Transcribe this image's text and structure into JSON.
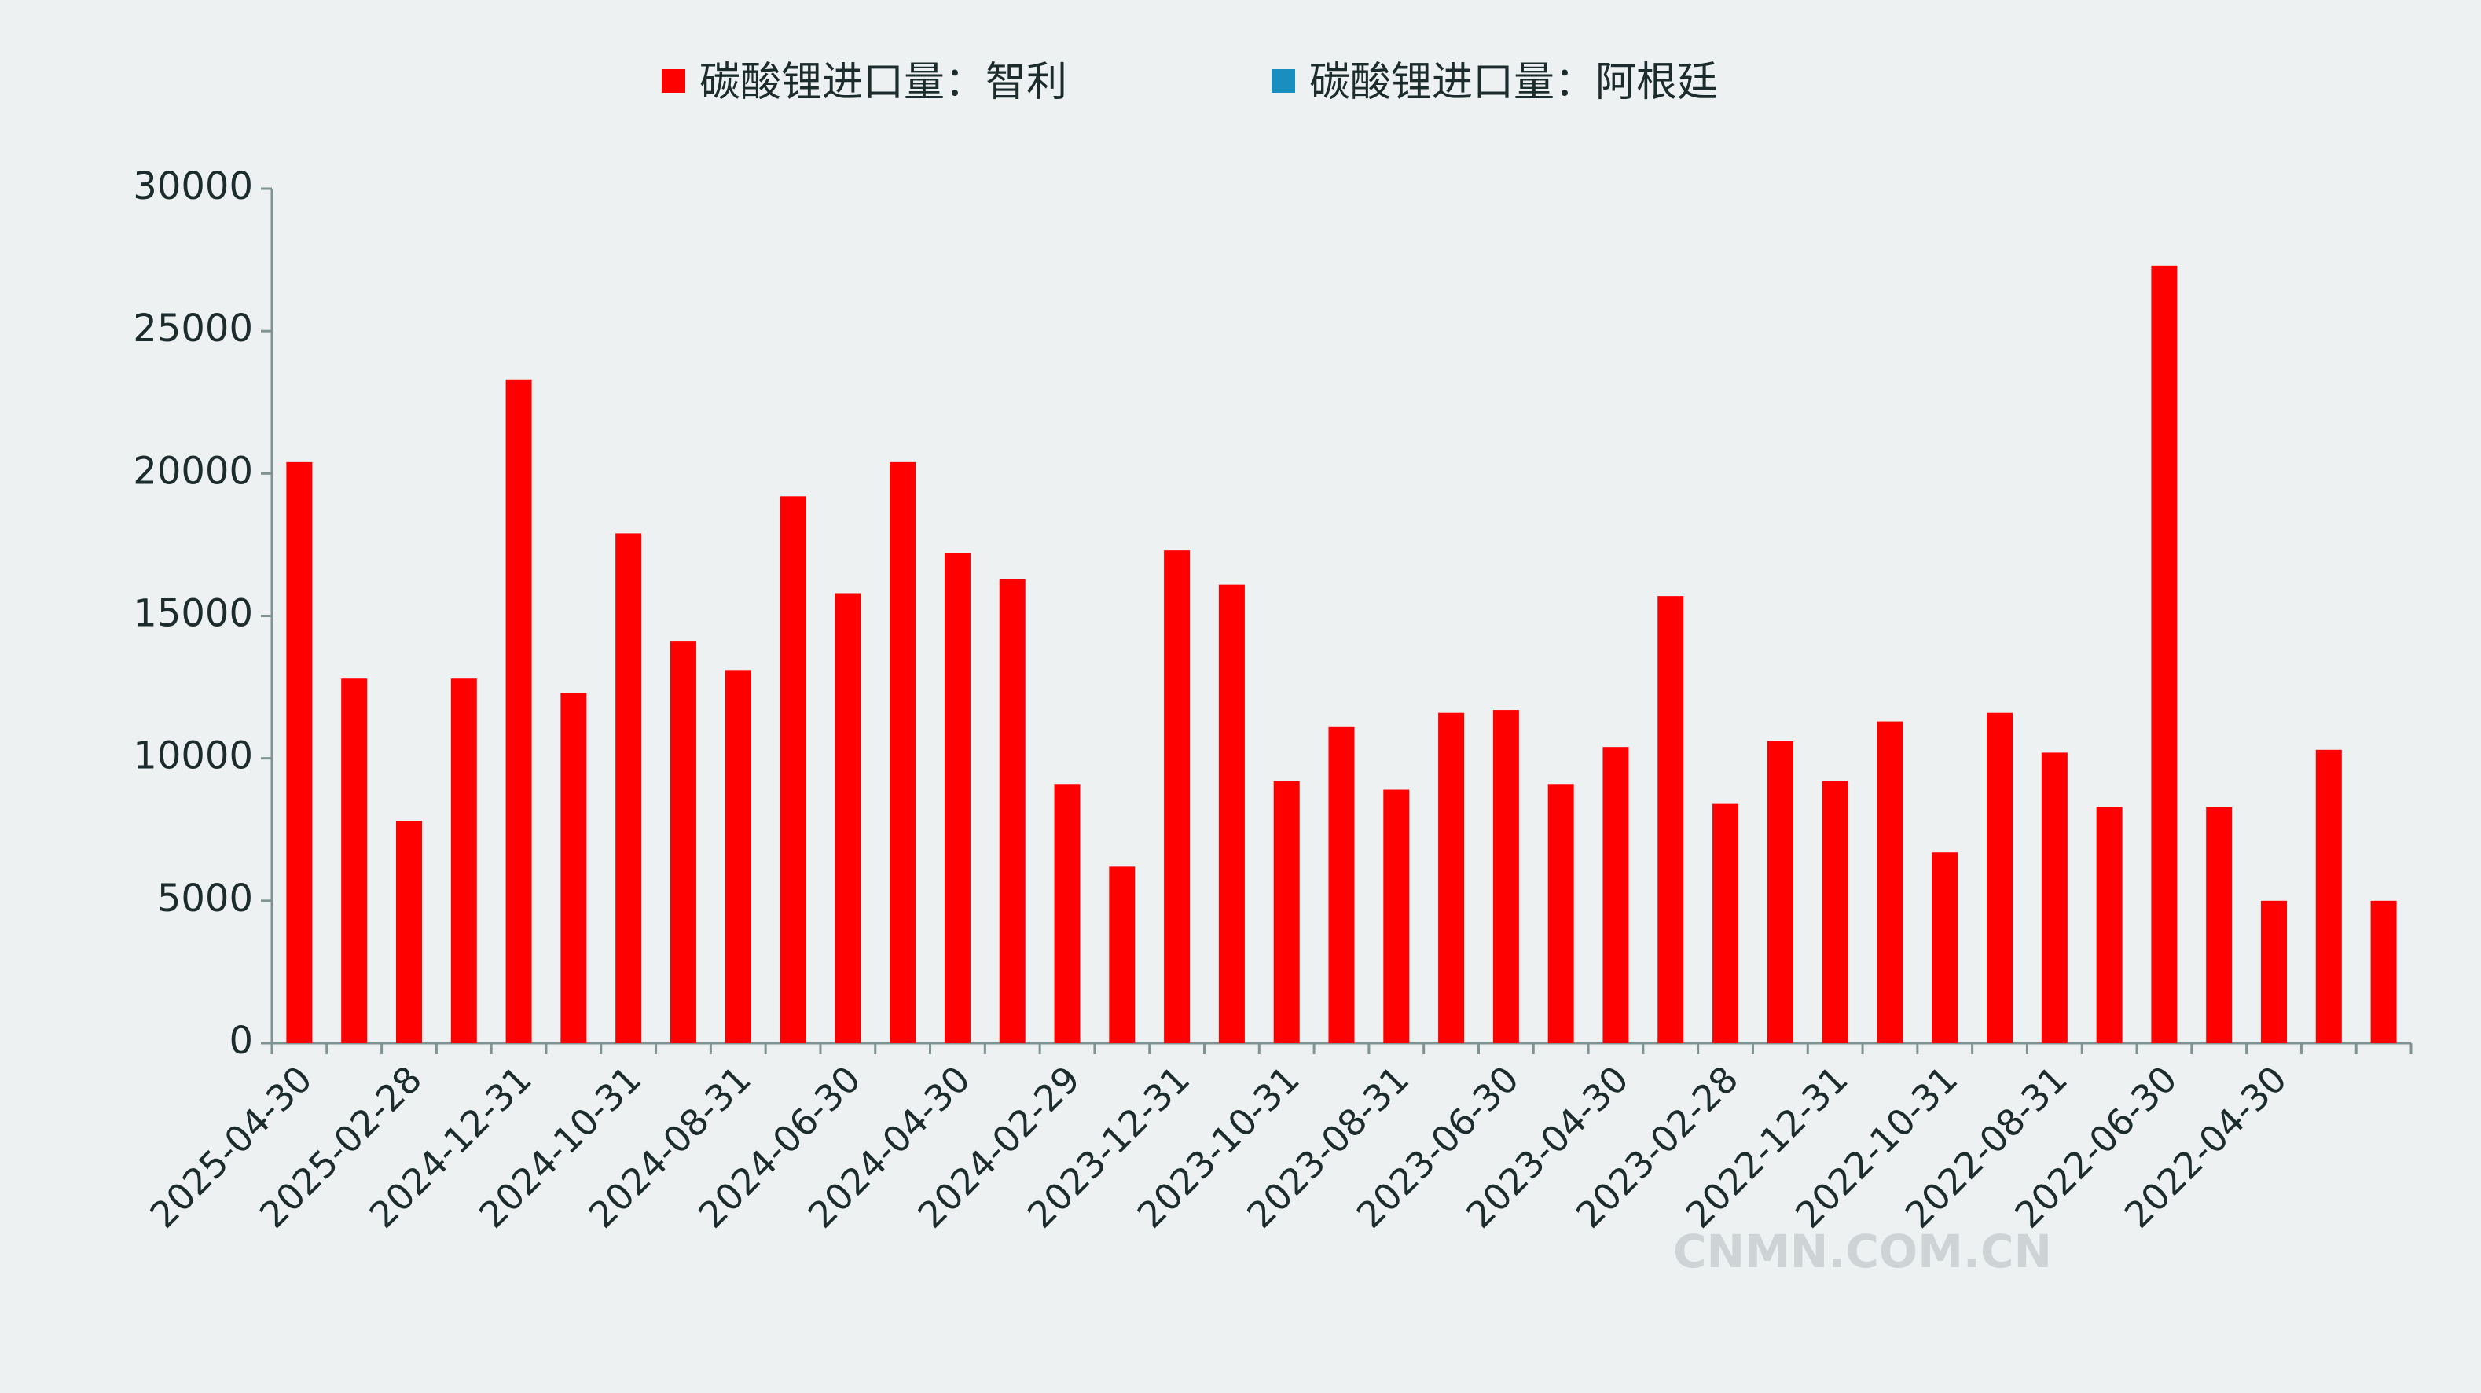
{
  "chart_data": {
    "type": "bar",
    "categories": [
      "2025-04-30",
      null,
      "2025-02-28",
      null,
      "2024-12-31",
      null,
      "2024-10-31",
      null,
      "2024-08-31",
      null,
      "2024-06-30",
      null,
      "2024-04-30",
      null,
      "2024-02-29",
      null,
      "2023-12-31",
      null,
      "2023-10-31",
      null,
      "2023-08-31",
      null,
      "2023-06-30",
      null,
      "2023-04-30",
      null,
      "2023-02-28",
      null,
      "2022-12-31",
      null,
      "2022-10-31",
      null,
      "2022-08-31",
      null,
      "2022-06-30",
      null,
      "2022-04-30",
      null,
      null
    ],
    "series": [
      {
        "name": "碳酸锂进口量：智利",
        "color": "#ff0000",
        "values": [
          20400,
          12800,
          7800,
          12800,
          23300,
          12300,
          17900,
          14100,
          13100,
          19200,
          15800,
          20400,
          17200,
          16300,
          9100,
          6200,
          17300,
          16100,
          9200,
          11100,
          8900,
          11600,
          11700,
          9100,
          10400,
          15700,
          8400,
          10600,
          9200,
          11300,
          6700,
          11600,
          10200,
          8300,
          27300,
          8300,
          5000,
          10300,
          5000
        ]
      },
      {
        "name": "碳酸锂进口量：阿根廷",
        "color": "#1a8fbf",
        "values": [
          null,
          null,
          null,
          null,
          null,
          null,
          null,
          null,
          null,
          null,
          null,
          null,
          null,
          null,
          null,
          null,
          null,
          null,
          null,
          null,
          null,
          null,
          null,
          null,
          null,
          null,
          null,
          null,
          null,
          null,
          null,
          null,
          null,
          null,
          null,
          null,
          null,
          null,
          null
        ]
      }
    ],
    "ylim": [
      0,
      30000
    ],
    "yticks": [
      0,
      5000,
      10000,
      15000,
      20000,
      25000,
      30000
    ],
    "grid": false,
    "legend": "top",
    "watermark": "CNMN.COM.CN"
  }
}
